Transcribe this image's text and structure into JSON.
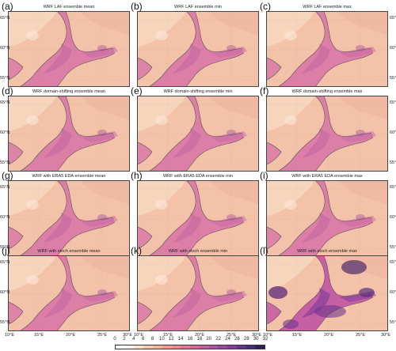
{
  "panels": [
    {
      "label": "(a)",
      "title": "WRF LAF ensemble mean",
      "variant": "normal"
    },
    {
      "label": "(b)",
      "title": "WRF LAF ensemble min",
      "variant": "normal"
    },
    {
      "label": "(c)",
      "title": "WRF LAF ensemble max",
      "variant": "normal"
    },
    {
      "label": "(d)",
      "title": "WRF domain-shifting ensemble mean",
      "variant": "normal"
    },
    {
      "label": "(e)",
      "title": "WRF domain-shifting ensemble min",
      "variant": "normal"
    },
    {
      "label": "(f)",
      "title": "WRF domain-shifting ensemble max",
      "variant": "normal"
    },
    {
      "label": "(g)",
      "title": "WRF with ERA5 EDA ensemble mean",
      "variant": "normal"
    },
    {
      "label": "(h)",
      "title": "WRF with ERA5 EDA ensemble min",
      "variant": "normal"
    },
    {
      "label": "(i)",
      "title": "WRF with ERA5 EDA ensemble max",
      "variant": "normal"
    },
    {
      "label": "(j)",
      "title": "WRF with stoch ensemble mean",
      "variant": "normal"
    },
    {
      "label": "(k)",
      "title": "WRF with stoch ensemble min",
      "variant": "normal"
    },
    {
      "label": "(l)",
      "title": "WRF with stoch ensemble max",
      "variant": "strong"
    }
  ],
  "lat_labels": [
    "65°N",
    "60°N",
    "55°N"
  ],
  "lon_labels": [
    "10°E",
    "15°E",
    "20°E",
    "25°E",
    "30°E"
  ],
  "colorbar": {
    "ticks": [
      "0",
      "2",
      "4",
      "6",
      "8",
      "10",
      "12",
      "14",
      "16",
      "18",
      "20",
      "22",
      "24",
      "26",
      "28",
      "30",
      "32"
    ],
    "colors": [
      "#ffffff",
      "#fdf0e6",
      "#fbdfc9",
      "#f8c9ad",
      "#f5b39a",
      "#f09c8e",
      "#ea8a8e",
      "#e07a92",
      "#d36b97",
      "#c45e9c",
      "#b052a0",
      "#9a48a2",
      "#803e9f",
      "#653394",
      "#4b2a7c",
      "#2f1f55"
    ]
  }
}
